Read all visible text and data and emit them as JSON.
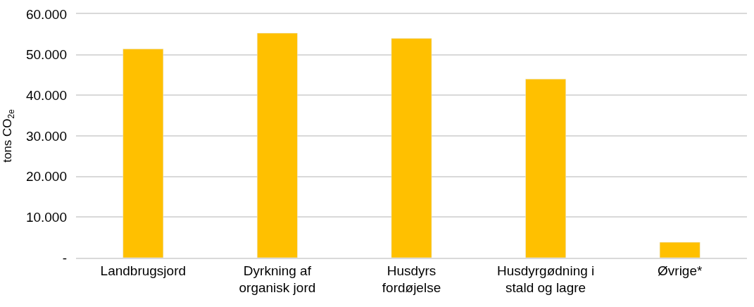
{
  "chart_data": {
    "type": "bar",
    "ylabel": "tons CO$_{2e}$",
    "categories": [
      "Landbrugsjord",
      "Dyrkning af organisk jord",
      "Husdyrs fordøjelse",
      "Husdyrgødning i stald og lagre",
      "Øvrige*"
    ],
    "values": [
      51400,
      55300,
      54000,
      44000,
      3800
    ],
    "color": "#ffc000",
    "ylim": [
      0,
      60000
    ],
    "yticks": [
      {
        "value": 0,
        "label": "-"
      },
      {
        "value": 10000,
        "label": "10.000"
      },
      {
        "value": 20000,
        "label": "20.000"
      },
      {
        "value": 30000,
        "label": "30.000"
      },
      {
        "value": 40000,
        "label": "40.000"
      },
      {
        "value": 50000,
        "label": "50.000"
      },
      {
        "value": 60000,
        "label": "60.000"
      }
    ],
    "grid": "y"
  }
}
